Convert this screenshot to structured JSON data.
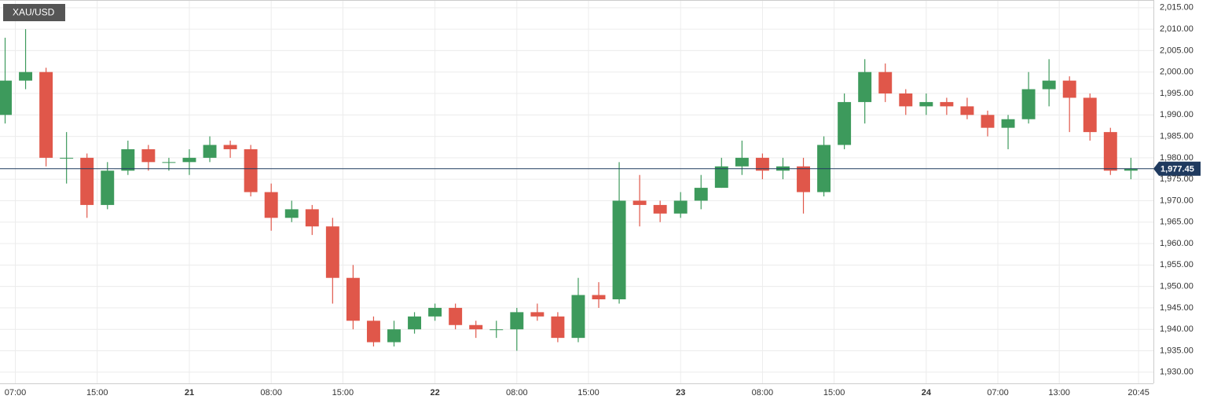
{
  "chart_data": {
    "type": "candlestick",
    "title": "XAU/USD",
    "x": [
      6,
      8,
      10,
      12,
      14,
      16,
      18,
      20,
      22,
      24,
      26,
      28,
      30,
      32,
      34,
      36,
      38,
      40,
      42,
      44,
      46,
      48,
      50,
      52,
      54,
      56,
      58,
      60,
      62,
      64,
      66,
      68,
      70,
      72,
      74,
      76,
      78,
      80,
      82,
      84,
      86,
      88,
      90,
      92,
      94,
      96,
      98,
      100,
      102,
      104,
      106,
      108,
      110,
      112,
      114,
      116
    ],
    "open": [
      1990,
      1998,
      2000,
      1980,
      1980,
      1969,
      1977,
      1982,
      1979,
      1979,
      1980,
      1983,
      1982,
      1972,
      1966,
      1968,
      1964,
      1952,
      1942,
      1937,
      1940,
      1943,
      1945,
      1941,
      1940,
      1940,
      1944,
      1943,
      1938,
      1948,
      1947,
      1970,
      1969,
      1967,
      1970,
      1973,
      1978,
      1980,
      1977,
      1978,
      1972,
      1983,
      1993,
      2000,
      1995,
      1992,
      1993,
      1992,
      1990,
      1987,
      1989,
      1996,
      1998,
      1994,
      1986,
      1977
    ],
    "high": [
      2008,
      2010,
      2001,
      1986,
      1981,
      1979,
      1984,
      1983,
      1980,
      1982,
      1985,
      1984,
      1983,
      1974,
      1970,
      1969,
      1966,
      1955,
      1943,
      1942,
      1944,
      1946,
      1946,
      1942,
      1942,
      1945,
      1946,
      1944,
      1952,
      1951,
      1979,
      1976,
      1970,
      1972,
      1976,
      1980,
      1984,
      1981,
      1980,
      1980,
      1985,
      1995,
      2003,
      2002,
      1996,
      1995,
      1994,
      1994,
      1991,
      1990,
      2000,
      2003,
      1999,
      1995,
      1987,
      1980
    ],
    "low": [
      1988,
      1996,
      1978,
      1974,
      1966,
      1968,
      1976,
      1977,
      1977,
      1976,
      1979,
      1980,
      1971,
      1963,
      1965,
      1962,
      1946,
      1940,
      1936,
      1936,
      1939,
      1942,
      1940,
      1938,
      1938,
      1935,
      1942,
      1937,
      1937,
      1945,
      1946,
      1964,
      1965,
      1966,
      1968,
      1973,
      1976,
      1975,
      1975,
      1967,
      1971,
      1982,
      1988,
      1993,
      1990,
      1990,
      1990,
      1989,
      1985,
      1982,
      1988,
      1992,
      1986,
      1984,
      1976,
      1975
    ],
    "close": [
      1998,
      2000,
      1980,
      1980,
      1969,
      1977,
      1982,
      1979,
      1979,
      1980,
      1983,
      1982,
      1972,
      1966,
      1968,
      1964,
      1952,
      1942,
      1937,
      1940,
      1943,
      1945,
      1941,
      1940,
      1940,
      1944,
      1943,
      1938,
      1948,
      1947,
      1970,
      1969,
      1967,
      1970,
      1973,
      1978,
      1980,
      1977,
      1978,
      1972,
      1983,
      1993,
      2000,
      1995,
      1992,
      1993,
      1992,
      1990,
      1987,
      1989,
      1996,
      1998,
      1994,
      1986,
      1977,
      1977.45
    ],
    "up_color": "#3d9a5c",
    "down_color": "#e0574a",
    "last_price": 1977.45,
    "last_price_label": "1,977.45",
    "last_price_color": "#1f3a5f",
    "xlim": [
      5.5,
      118.2
    ],
    "xticks": [
      {
        "value": 7,
        "label": "07:00"
      },
      {
        "value": 15,
        "label": "15:00"
      },
      {
        "value": 24,
        "label": "21"
      },
      {
        "value": 32,
        "label": "08:00"
      },
      {
        "value": 39,
        "label": "15:00"
      },
      {
        "value": 48,
        "label": "22"
      },
      {
        "value": 56,
        "label": "08:00"
      },
      {
        "value": 63,
        "label": "15:00"
      },
      {
        "value": 72,
        "label": "23"
      },
      {
        "value": 80,
        "label": "08:00"
      },
      {
        "value": 87,
        "label": "15:00"
      },
      {
        "value": 96,
        "label": "24"
      },
      {
        "value": 103,
        "label": "07:00"
      },
      {
        "value": 109,
        "label": "13:00"
      },
      {
        "value": 116.75,
        "label": "20:45"
      }
    ],
    "ylim": [
      1927.4,
      2016.8
    ],
    "yticks": [
      {
        "value": 1930,
        "label": "1,930.00"
      },
      {
        "value": 1935,
        "label": "1,935.00"
      },
      {
        "value": 1940,
        "label": "1,940.00"
      },
      {
        "value": 1945,
        "label": "1,945.00"
      },
      {
        "value": 1950,
        "label": "1,950.00"
      },
      {
        "value": 1955,
        "label": "1,955.00"
      },
      {
        "value": 1960,
        "label": "1,960.00"
      },
      {
        "value": 1965,
        "label": "1,965.00"
      },
      {
        "value": 1970,
        "label": "1,970.00"
      },
      {
        "value": 1975,
        "label": "1,975.00"
      },
      {
        "value": 1980,
        "label": "1,980.00"
      },
      {
        "value": 1985,
        "label": "1,985.00"
      },
      {
        "value": 1990,
        "label": "1,990.00"
      },
      {
        "value": 1995,
        "label": "1,995.00"
      },
      {
        "value": 2000,
        "label": "2,000.00"
      },
      {
        "value": 2005,
        "label": "2,005.00"
      },
      {
        "value": 2010,
        "label": "2,010.00"
      },
      {
        "value": 2015,
        "label": "2,015.00"
      }
    ],
    "grid": true
  }
}
